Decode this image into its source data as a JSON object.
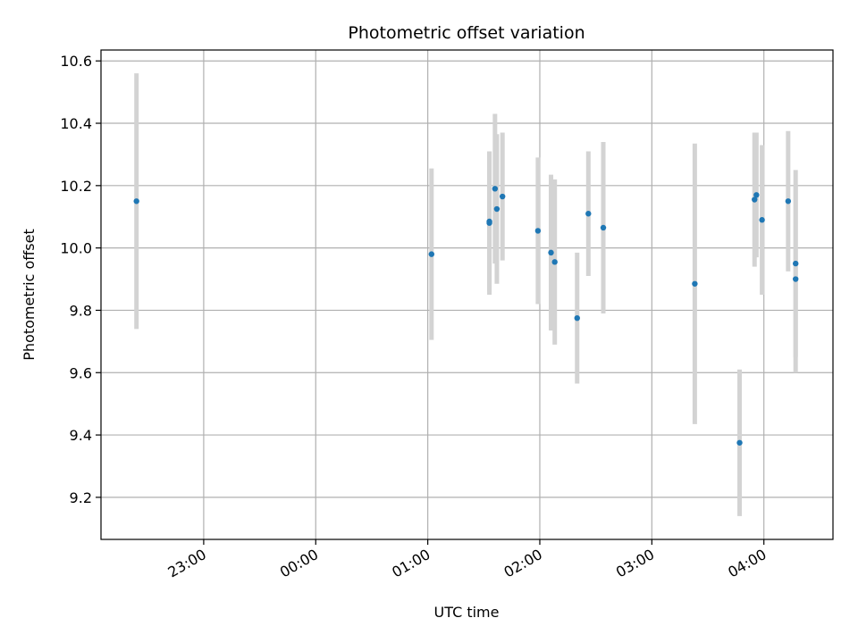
{
  "chart_data": {
    "type": "scatter",
    "title": "Photometric offset variation",
    "xlabel": "UTC time",
    "ylabel": "Photometric offset",
    "xlim": [
      "22:05",
      "04:37"
    ],
    "ylim": [
      9.065,
      10.635
    ],
    "grid": true,
    "x_ticks": [
      "23:00",
      "00:00",
      "01:00",
      "02:00",
      "03:00",
      "04:00"
    ],
    "y_ticks": [
      9.2,
      9.4,
      9.6,
      9.8,
      10.0,
      10.2,
      10.4,
      10.6
    ],
    "point_color": "#1f77b4",
    "errorbar_color": "#d3d3d3",
    "points": [
      {
        "time": "22:24",
        "y": 10.15,
        "err": 0.41
      },
      {
        "time": "01:02",
        "y": 9.98,
        "err": 0.275
      },
      {
        "time": "01:33",
        "y": 10.08,
        "err": 0.23
      },
      {
        "time": "01:33",
        "y": 10.085,
        "err": 0.225
      },
      {
        "time": "01:36",
        "y": 10.19,
        "err": 0.24
      },
      {
        "time": "01:37",
        "y": 10.125,
        "err": 0.24
      },
      {
        "time": "01:40",
        "y": 10.165,
        "err": 0.205
      },
      {
        "time": "01:59",
        "y": 10.055,
        "err": 0.235
      },
      {
        "time": "02:06",
        "y": 9.985,
        "err": 0.25
      },
      {
        "time": "02:08",
        "y": 9.955,
        "err": 0.265
      },
      {
        "time": "02:20",
        "y": 9.775,
        "err": 0.21
      },
      {
        "time": "02:26",
        "y": 10.11,
        "err": 0.2
      },
      {
        "time": "02:34",
        "y": 10.065,
        "err": 0.275
      },
      {
        "time": "03:23",
        "y": 9.885,
        "err": 0.45
      },
      {
        "time": "03:47",
        "y": 9.375,
        "err": 0.235
      },
      {
        "time": "03:55",
        "y": 10.155,
        "err": 0.215
      },
      {
        "time": "03:56",
        "y": 10.17,
        "err": 0.2
      },
      {
        "time": "03:59",
        "y": 10.09,
        "err": 0.24
      },
      {
        "time": "04:13",
        "y": 10.15,
        "err": 0.225
      },
      {
        "time": "04:17",
        "y": 9.95,
        "err": 0.3
      },
      {
        "time": "04:17",
        "y": 9.9,
        "err": 0.3
      }
    ]
  }
}
